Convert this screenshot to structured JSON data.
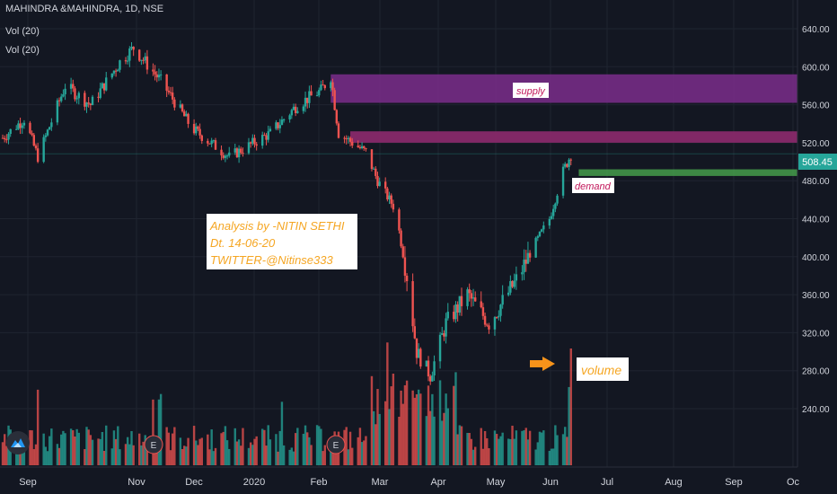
{
  "header": {
    "symbol_line": "MAHINDRA &MAHINDRA, 1D, NSE",
    "indicator_1": "Vol (20)",
    "indicator_2": "Vol (20)"
  },
  "colors": {
    "background": "#131722",
    "up": "#26a69a",
    "down": "#ef5350",
    "grid": "#1f2430",
    "axis_text": "#d1d4dc",
    "price_tag": "#26a69a",
    "supply_zone": "#7b2d8b",
    "demand_line": "#4caf50",
    "annotation_text": "#f5a623",
    "arrow": "#f7931a"
  },
  "annotations": {
    "supply_label": "supply",
    "demand_label": "demand",
    "volume_label": "volume",
    "analysis_line_1": "Analysis by -NITIN SETHI",
    "analysis_line_2": "Dt. 14-06-20",
    "analysis_line_3": "TWITTER-@Nitinse333"
  },
  "earnings_marker": "E",
  "logo_icon": "tradingview-logo-icon",
  "chart_data": {
    "type": "candlestick",
    "title": "MAHINDRA &MAHINDRA, 1D, NSE",
    "last_price": "508.45",
    "ylim": [
      200,
      660
    ],
    "y_ticks": [
      240,
      280,
      320,
      360,
      400,
      440,
      480,
      520,
      560,
      600,
      640
    ],
    "y_tick_labels": [
      "240.00",
      "280.00",
      "320.00",
      "360.00",
      "400.00",
      "440.00",
      "480.00",
      "520.00",
      "560.00",
      "600.00",
      "640.00"
    ],
    "x_labels": [
      "Sep",
      "Nov",
      "Dec",
      "2020",
      "Feb",
      "Mar",
      "Apr",
      "May",
      "Jun",
      "Jul",
      "Aug",
      "Sep",
      "Oc"
    ],
    "price_anchors": [
      {
        "date": "2019-08-26",
        "close": 525
      },
      {
        "date": "2019-09-06",
        "close": 545
      },
      {
        "date": "2019-09-13",
        "close": 505
      },
      {
        "date": "2019-09-27",
        "close": 580
      },
      {
        "date": "2019-10-10",
        "close": 560
      },
      {
        "date": "2019-10-25",
        "close": 605
      },
      {
        "date": "2019-11-01",
        "close": 620
      },
      {
        "date": "2019-11-15",
        "close": 585
      },
      {
        "date": "2019-12-01",
        "close": 535
      },
      {
        "date": "2019-12-20",
        "close": 505
      },
      {
        "date": "2020-01-10",
        "close": 530
      },
      {
        "date": "2020-01-24",
        "close": 560
      },
      {
        "date": "2020-02-05",
        "close": 575
      },
      {
        "date": "2020-02-10",
        "close": 590
      },
      {
        "date": "2020-02-14",
        "close": 530
      },
      {
        "date": "2020-02-28",
        "close": 510
      },
      {
        "date": "2020-03-05",
        "close": 480
      },
      {
        "date": "2020-03-14",
        "close": 450
      },
      {
        "date": "2020-03-20",
        "close": 380
      },
      {
        "date": "2020-03-25",
        "close": 300
      },
      {
        "date": "2020-04-01",
        "close": 275
      },
      {
        "date": "2020-04-09",
        "close": 330
      },
      {
        "date": "2020-04-20",
        "close": 360
      },
      {
        "date": "2020-05-01",
        "close": 330
      },
      {
        "date": "2020-05-15",
        "close": 375
      },
      {
        "date": "2020-05-25",
        "close": 415
      },
      {
        "date": "2020-06-01",
        "close": 440
      },
      {
        "date": "2020-06-08",
        "close": 490
      },
      {
        "date": "2020-06-12",
        "close": 508
      }
    ],
    "zones": [
      {
        "name": "supply",
        "from": 562,
        "to": 592,
        "start": "2020-02-10"
      },
      {
        "name": "supply-lower",
        "from": 520,
        "to": 532,
        "start": "2020-02-20"
      },
      {
        "name": "demand",
        "from": 485,
        "to": 492,
        "start": "2020-06-16"
      }
    ],
    "grid": true,
    "volume_panel": true
  }
}
